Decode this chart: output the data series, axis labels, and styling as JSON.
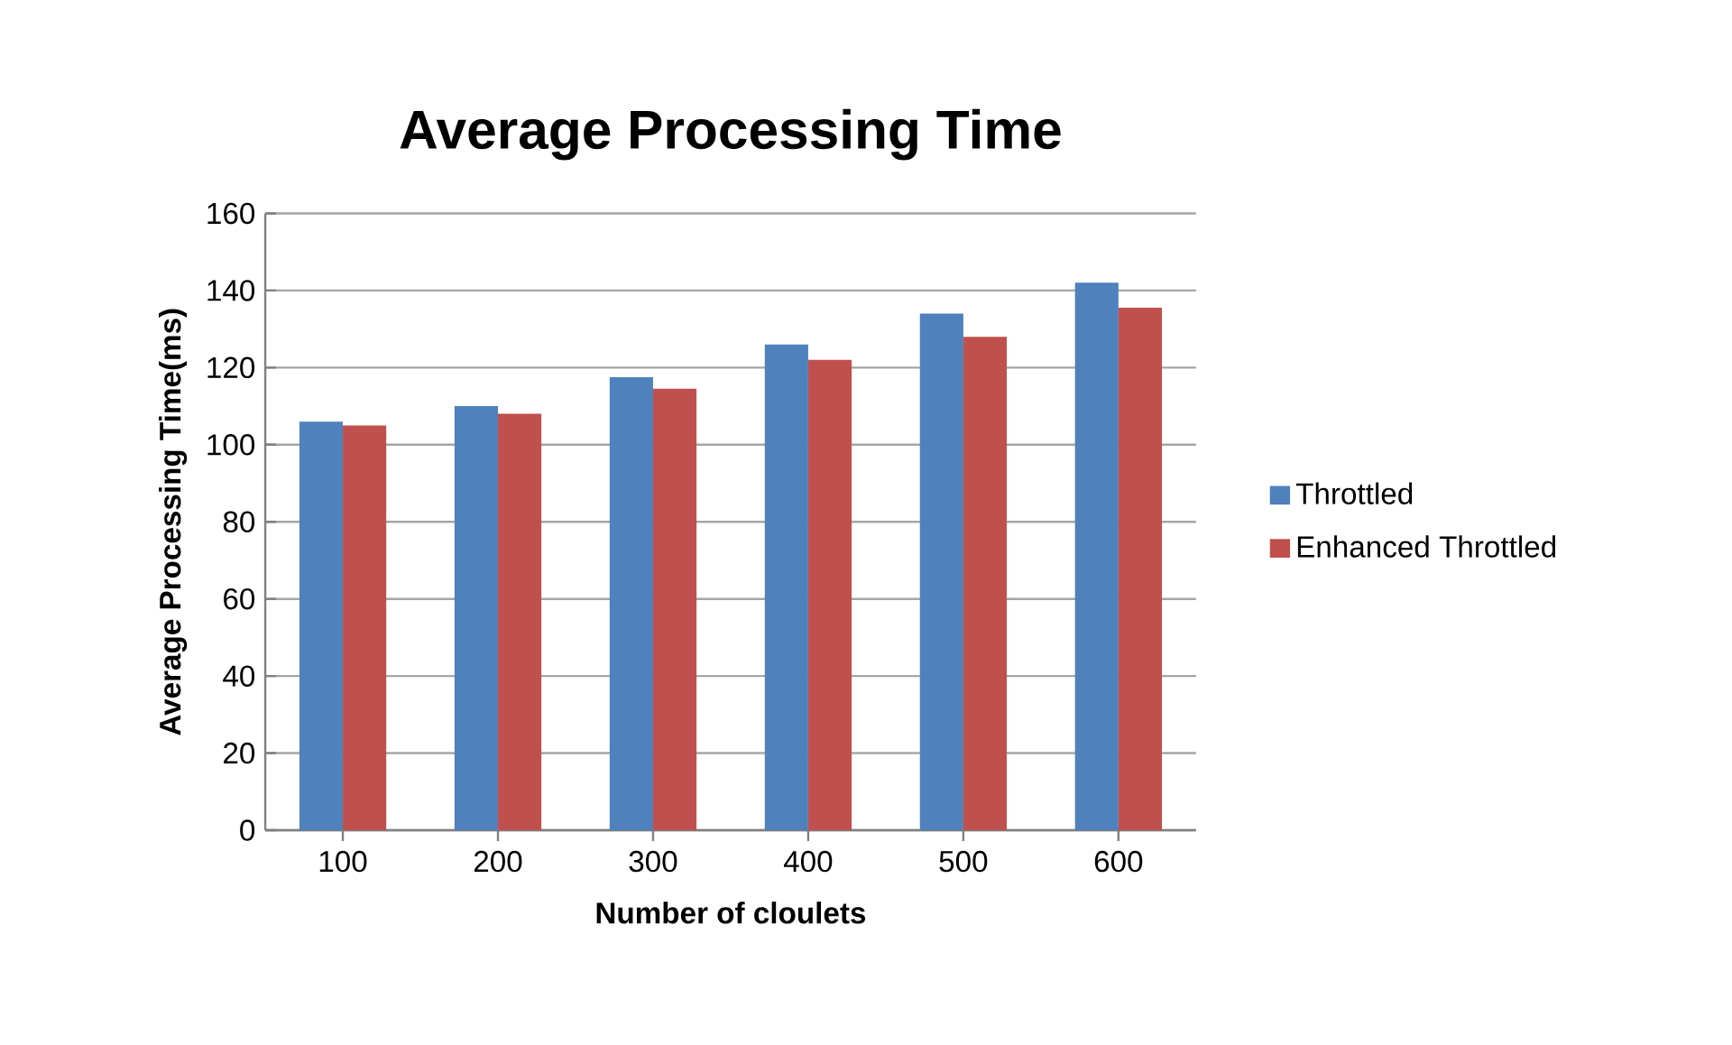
{
  "chart_data": {
    "type": "bar",
    "title": "Average Processing Time",
    "xlabel": "Number of cloulets",
    "ylabel": "Average Processing Time(ms)",
    "categories": [
      "100",
      "200",
      "300",
      "400",
      "500",
      "600"
    ],
    "series": [
      {
        "name": "Throttled",
        "color": "#4f81bd",
        "values": [
          106,
          110,
          117.5,
          126,
          134,
          142
        ]
      },
      {
        "name": "Enhanced Throttled",
        "color": "#c0504d",
        "values": [
          105,
          108,
          114.5,
          122,
          128,
          135.5
        ]
      }
    ],
    "ylim": [
      0,
      160
    ],
    "yticks": [
      0,
      20,
      40,
      60,
      80,
      100,
      120,
      140,
      160
    ],
    "grid": "y",
    "legend": "right"
  }
}
